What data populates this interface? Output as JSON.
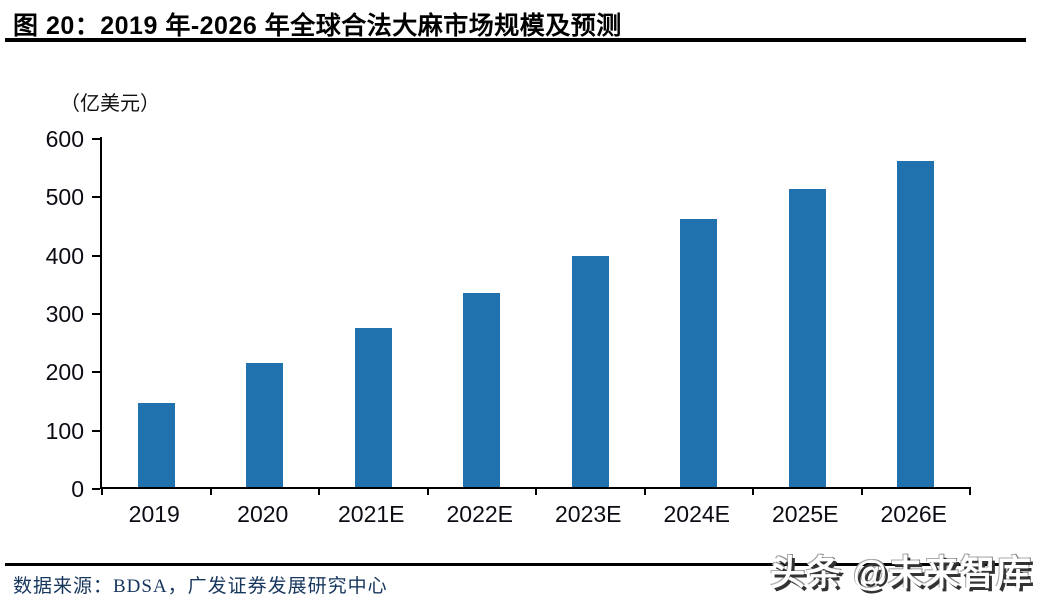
{
  "header": {
    "title": "图 20：2019 年-2026 年全球合法大麻市场规模及预测"
  },
  "chart_data": {
    "type": "bar",
    "title": "2019年-2026年全球合法大麻市场规模及预测",
    "unit_label": "（亿美元）",
    "categories": [
      "2019",
      "2020",
      "2021E",
      "2022E",
      "2023E",
      "2024E",
      "2025E",
      "2026E"
    ],
    "values": [
      144,
      213,
      273,
      333,
      396,
      459,
      511,
      559
    ],
    "xlabel": "",
    "ylabel": "亿美元",
    "ylim": [
      0,
      600
    ],
    "yticks": [
      0,
      100,
      200,
      300,
      400,
      500,
      600
    ],
    "grid": false,
    "legend": "none",
    "bar_color": "#2072AE"
  },
  "footer": {
    "source": "数据来源：BDSA，广发证券发展研究中心",
    "source_color": "#17365D"
  },
  "watermark": {
    "text": "头条 @未来智库"
  }
}
